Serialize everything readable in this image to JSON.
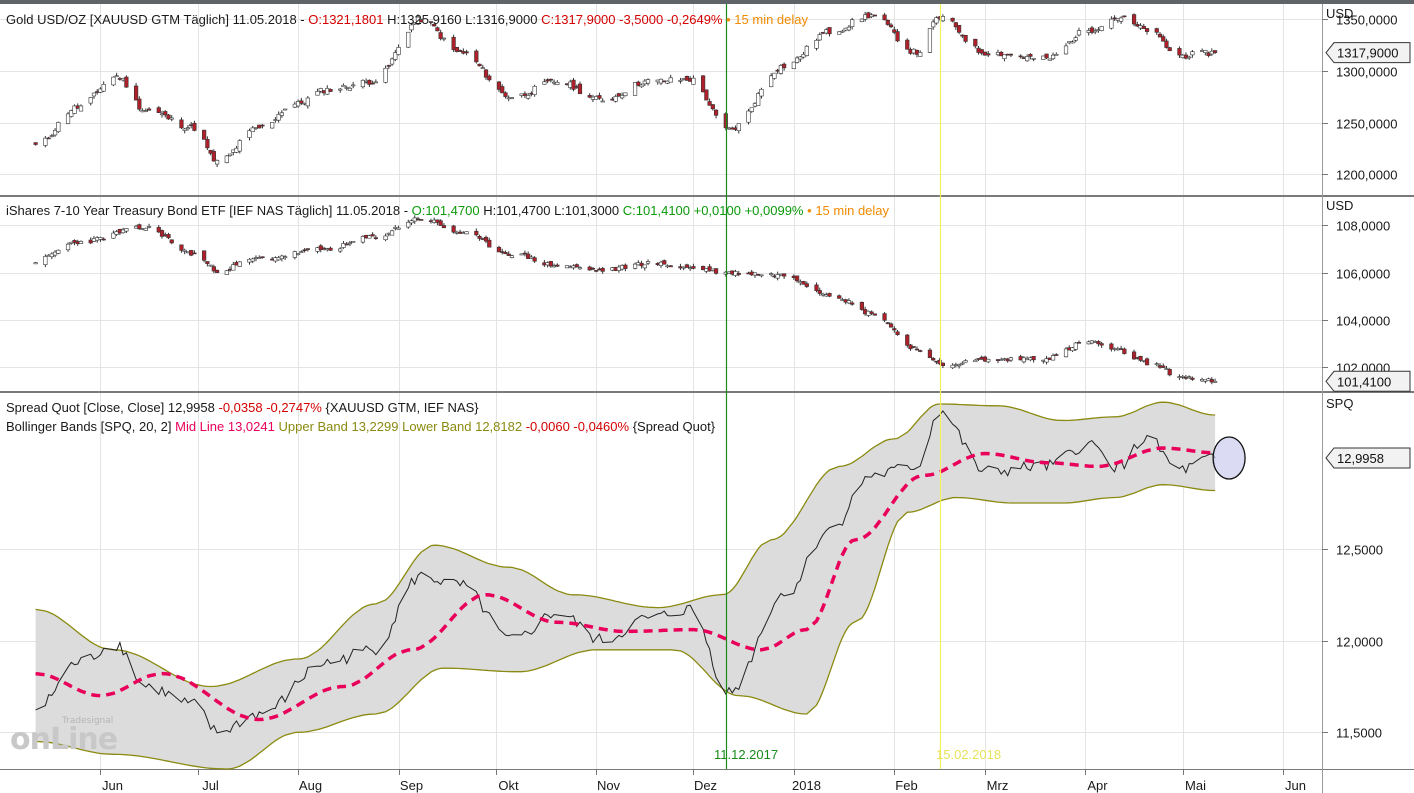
{
  "panes": {
    "gold": {
      "symbol": "Gold USD/OZ [XAUUSD GTM Täglich] 11.05.2018",
      "ohlc": "O:1321,1801 H:1325,9160 L:1316,9000",
      "o": "O:1321,1801",
      "h": "H:1325,9160",
      "l": "L:1316,9000",
      "change": "C:1317,9000 -3,5000 -0,2649%",
      "delay": "15 min delay",
      "unit": "USD",
      "last_price": "1317,9000"
    },
    "ief": {
      "symbol": "iShares 7-10 Year Treasury Bond ETF [IEF NAS Täglich] 11.05.2018",
      "o": "O:101,4700",
      "h": "H:101,4700",
      "l": "L:101,3000",
      "change": "C:101,4100 +0,0100 +0,0099%",
      "delay": "15 min delay",
      "unit": "USD",
      "last_price": "101,4100"
    },
    "spread": {
      "line1_name": "Spread Quot [Close, Close]",
      "line1_value": "12,9958",
      "line1_change": "-0,0358 -0,2747%",
      "line1_sources": "{XAUUSD GTM, IEF NAS}",
      "line2_name": "Bollinger Bands [SPQ, 20, 2]",
      "line2_mid": "Mid Line 13,0241",
      "line2_upper": "Upper Band 13,2299",
      "line2_lower": "Lower Band 12,8182",
      "line2_change": "-0,0060 -0,0460%",
      "line2_source": "{Spread Quot}",
      "unit": "SPQ",
      "last_price": "12,9958"
    }
  },
  "markers": [
    {
      "label": "11.12.2017",
      "color": "#1a8a1a"
    },
    {
      "label": "15.02.2018",
      "color": "#f5f060"
    }
  ],
  "watermark": {
    "brand": "Tradesignal",
    "text": "onLine"
  },
  "colors": {
    "up_candle": "#ffffff",
    "down_candle": "#b0202a",
    "wick": "#333333",
    "band_fill": "#dcdcdc",
    "band_line": "#8a8a10",
    "mid_line": "#e8005a",
    "spread_line": "#222222",
    "grid": "#e4e4e4",
    "separator": "#7a7a7a"
  },
  "chart_data": [
    {
      "type": "candlestick",
      "name": "Gold USD/OZ",
      "x_tick_labels": [
        "Jun",
        "Jul",
        "Aug",
        "Sep",
        "Okt",
        "Nov",
        "Dez",
        "2018",
        "Feb",
        "Mrz",
        "Apr",
        "Mai",
        "Jun"
      ],
      "y_tick_labels": [
        "1350,0000",
        "1300,0000",
        "1250,0000",
        "1200,0000"
      ],
      "ylim": [
        1180,
        1365
      ],
      "anchors": [
        [
          "2017-05-12",
          1228
        ],
        [
          "2017-05-25",
          1265
        ],
        [
          "2017-06-06",
          1295
        ],
        [
          "2017-06-15",
          1262
        ],
        [
          "2017-06-30",
          1245
        ],
        [
          "2017-07-07",
          1212
        ],
        [
          "2017-07-20",
          1245
        ],
        [
          "2017-07-31",
          1268
        ],
        [
          "2017-08-10",
          1282
        ],
        [
          "2017-08-24",
          1290
        ],
        [
          "2017-09-08",
          1350
        ],
        [
          "2017-09-20",
          1318
        ],
        [
          "2017-10-06",
          1275
        ],
        [
          "2017-10-20",
          1290
        ],
        [
          "2017-11-03",
          1272
        ],
        [
          "2017-11-17",
          1290
        ],
        [
          "2017-11-30",
          1292
        ],
        [
          "2017-12-12",
          1243
        ],
        [
          "2017-12-29",
          1305
        ],
        [
          "2018-01-12",
          1338
        ],
        [
          "2018-01-25",
          1354
        ],
        [
          "2018-02-08",
          1318
        ],
        [
          "2018-02-15",
          1352
        ],
        [
          "2018-03-01",
          1318
        ],
        [
          "2018-03-20",
          1312
        ],
        [
          "2018-04-02",
          1340
        ],
        [
          "2018-04-11",
          1352
        ],
        [
          "2018-04-20",
          1340
        ],
        [
          "2018-04-30",
          1315
        ],
        [
          "2018-05-11",
          1317.9
        ]
      ]
    },
    {
      "type": "candlestick",
      "name": "iShares 7-10 Year Treasury Bond ETF",
      "x_tick_labels": [
        "Jun",
        "Jul",
        "Aug",
        "Sep",
        "Okt",
        "Nov",
        "Dez",
        "2018",
        "Feb",
        "Mrz",
        "Apr",
        "Mai",
        "Jun"
      ],
      "y_tick_labels": [
        "108,0000",
        "106,0000",
        "104,0000",
        "102,0000"
      ],
      "ylim": [
        101.0,
        109.2
      ],
      "anchors": [
        [
          "2017-05-12",
          106.5
        ],
        [
          "2017-05-25",
          107.3
        ],
        [
          "2017-06-15",
          107.9
        ],
        [
          "2017-06-30",
          106.8
        ],
        [
          "2017-07-07",
          106.1
        ],
        [
          "2017-07-20",
          106.6
        ],
        [
          "2017-08-10",
          107.0
        ],
        [
          "2017-08-24",
          107.5
        ],
        [
          "2017-09-08",
          108.3
        ],
        [
          "2017-09-20",
          107.7
        ],
        [
          "2017-10-06",
          106.8
        ],
        [
          "2017-10-20",
          106.3
        ],
        [
          "2017-11-03",
          106.1
        ],
        [
          "2017-11-17",
          106.4
        ],
        [
          "2017-12-01",
          106.2
        ],
        [
          "2017-12-12",
          106.0
        ],
        [
          "2017-12-29",
          105.9
        ],
        [
          "2018-01-12",
          105.1
        ],
        [
          "2018-01-25",
          104.3
        ],
        [
          "2018-02-08",
          102.8
        ],
        [
          "2018-02-15",
          102.1
        ],
        [
          "2018-03-01",
          102.3
        ],
        [
          "2018-03-20",
          102.4
        ],
        [
          "2018-04-02",
          103.1
        ],
        [
          "2018-04-11",
          102.7
        ],
        [
          "2018-04-20",
          102.2
        ],
        [
          "2018-05-01",
          101.6
        ],
        [
          "2018-05-11",
          101.41
        ]
      ]
    },
    {
      "type": "line",
      "name": "Spread Quot / Bollinger Bands",
      "y_tick_labels": [
        "12,5000",
        "12,0000",
        "11,5000"
      ],
      "ylim": [
        11.3,
        13.35
      ],
      "series": [
        {
          "name": "Spread Quot",
          "anchors": [
            [
              "2017-05-12",
              11.62
            ],
            [
              "2017-05-25",
              11.88
            ],
            [
              "2017-06-06",
              11.98
            ],
            [
              "2017-06-15",
              11.75
            ],
            [
              "2017-06-30",
              11.65
            ],
            [
              "2017-07-07",
              11.5
            ],
            [
              "2017-07-20",
              11.6
            ],
            [
              "2017-08-10",
              11.88
            ],
            [
              "2017-08-24",
              11.95
            ],
            [
              "2017-09-08",
              12.35
            ],
            [
              "2017-09-20",
              12.3
            ],
            [
              "2017-10-06",
              12.0
            ],
            [
              "2017-10-20",
              12.15
            ],
            [
              "2017-11-03",
              12.0
            ],
            [
              "2017-11-17",
              12.12
            ],
            [
              "2017-11-30",
              12.17
            ],
            [
              "2017-12-12",
              11.72
            ],
            [
              "2017-12-29",
              12.25
            ],
            [
              "2018-01-12",
              12.6
            ],
            [
              "2018-01-25",
              12.9
            ],
            [
              "2018-02-08",
              12.95
            ],
            [
              "2018-02-15",
              13.25
            ],
            [
              "2018-03-01",
              12.92
            ],
            [
              "2018-03-20",
              12.95
            ],
            [
              "2018-04-02",
              13.07
            ],
            [
              "2018-04-11",
              12.95
            ],
            [
              "2018-04-20",
              13.1
            ],
            [
              "2018-04-30",
              12.93
            ],
            [
              "2018-05-11",
              12.9958
            ]
          ]
        },
        {
          "name": "Mid Line",
          "anchors": [
            [
              "2017-05-12",
              11.82
            ],
            [
              "2017-06-01",
              11.7
            ],
            [
              "2017-06-20",
              11.82
            ],
            [
              "2017-07-20",
              11.57
            ],
            [
              "2017-08-15",
              11.75
            ],
            [
              "2017-09-05",
              11.95
            ],
            [
              "2017-09-28",
              12.25
            ],
            [
              "2017-10-20",
              12.1
            ],
            [
              "2017-11-10",
              12.05
            ],
            [
              "2017-12-01",
              12.06
            ],
            [
              "2017-12-22",
              11.95
            ],
            [
              "2018-01-05",
              12.06
            ],
            [
              "2018-01-20",
              12.55
            ],
            [
              "2018-02-10",
              12.9
            ],
            [
              "2018-03-01",
              13.02
            ],
            [
              "2018-03-20",
              12.97
            ],
            [
              "2018-04-05",
              12.95
            ],
            [
              "2018-04-25",
              13.05
            ],
            [
              "2018-05-11",
              13.0241
            ]
          ]
        },
        {
          "name": "Upper Band",
          "anchors": [
            [
              "2017-05-12",
              12.17
            ],
            [
              "2017-06-05",
              11.95
            ],
            [
              "2017-07-05",
              11.75
            ],
            [
              "2017-08-01",
              11.9
            ],
            [
              "2017-08-25",
              12.2
            ],
            [
              "2017-09-12",
              12.52
            ],
            [
              "2017-10-05",
              12.4
            ],
            [
              "2017-10-25",
              12.25
            ],
            [
              "2017-11-20",
              12.18
            ],
            [
              "2017-12-10",
              12.25
            ],
            [
              "2017-12-25",
              12.55
            ],
            [
              "2018-01-15",
              12.95
            ],
            [
              "2018-02-01",
              13.1
            ],
            [
              "2018-02-15",
              13.29
            ],
            [
              "2018-03-05",
              13.28
            ],
            [
              "2018-03-25",
              13.2
            ],
            [
              "2018-04-10",
              13.22
            ],
            [
              "2018-04-25",
              13.3
            ],
            [
              "2018-05-11",
              13.2299
            ]
          ]
        },
        {
          "name": "Lower Band",
          "anchors": [
            [
              "2017-05-12",
              11.45
            ],
            [
              "2017-06-05",
              11.38
            ],
            [
              "2017-07-10",
              11.3
            ],
            [
              "2017-08-01",
              11.5
            ],
            [
              "2017-08-25",
              11.6
            ],
            [
              "2017-09-15",
              11.85
            ],
            [
              "2017-10-08",
              11.83
            ],
            [
              "2017-11-01",
              11.95
            ],
            [
              "2017-11-25",
              11.95
            ],
            [
              "2017-12-15",
              11.7
            ],
            [
              "2018-01-05",
              11.6
            ],
            [
              "2018-01-20",
              12.1
            ],
            [
              "2018-02-05",
              12.7
            ],
            [
              "2018-02-20",
              12.78
            ],
            [
              "2018-03-10",
              12.75
            ],
            [
              "2018-03-25",
              12.75
            ],
            [
              "2018-04-10",
              12.78
            ],
            [
              "2018-04-25",
              12.85
            ],
            [
              "2018-05-11",
              12.8182
            ]
          ]
        }
      ]
    }
  ]
}
